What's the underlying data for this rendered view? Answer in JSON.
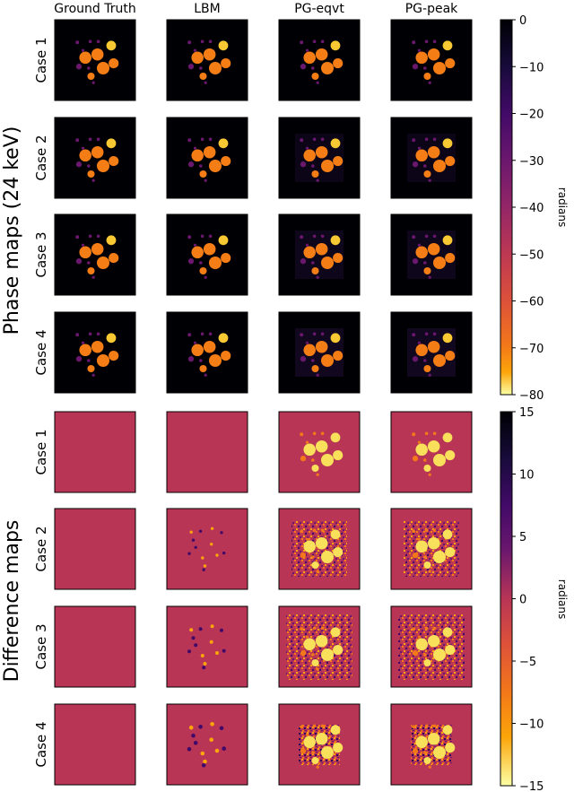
{
  "chart_data": [
    {
      "type": "heatmap",
      "section_label": "Phase maps (24 keV)",
      "column_labels": [
        "Ground Truth",
        "LBM",
        "PG-eqvt",
        "PG-peak"
      ],
      "row_labels": [
        "Case 1",
        "Case 2",
        "Case 3",
        "Case 4"
      ],
      "colorbar": {
        "label": "radians",
        "range": [
          -80,
          0
        ],
        "ticks": [
          "0",
          "−10",
          "−20",
          "−30",
          "−40",
          "−50",
          "−60",
          "−70",
          "−80"
        ],
        "colormap": "inferno (reversed)"
      }
    },
    {
      "type": "heatmap",
      "section_label": "Difference maps",
      "column_labels": [
        "Ground Truth",
        "LBM",
        "PG-eqvt",
        "PG-peak"
      ],
      "row_labels": [
        "Case 1",
        "Case 2",
        "Case 3",
        "Case 4"
      ],
      "colorbar": {
        "label": "radians",
        "range": [
          -15,
          15
        ],
        "ticks": [
          "15",
          "10",
          "5",
          "0",
          "−5",
          "−10",
          "−15"
        ],
        "colormap": "inferno (reversed)"
      }
    }
  ],
  "colors": {
    "phase_background": "#000004",
    "difference_background": "#b83556",
    "bright_sphere": "#f8c932",
    "mid_sphere": "#f57d15",
    "dim_sphere": "#6a176e"
  }
}
